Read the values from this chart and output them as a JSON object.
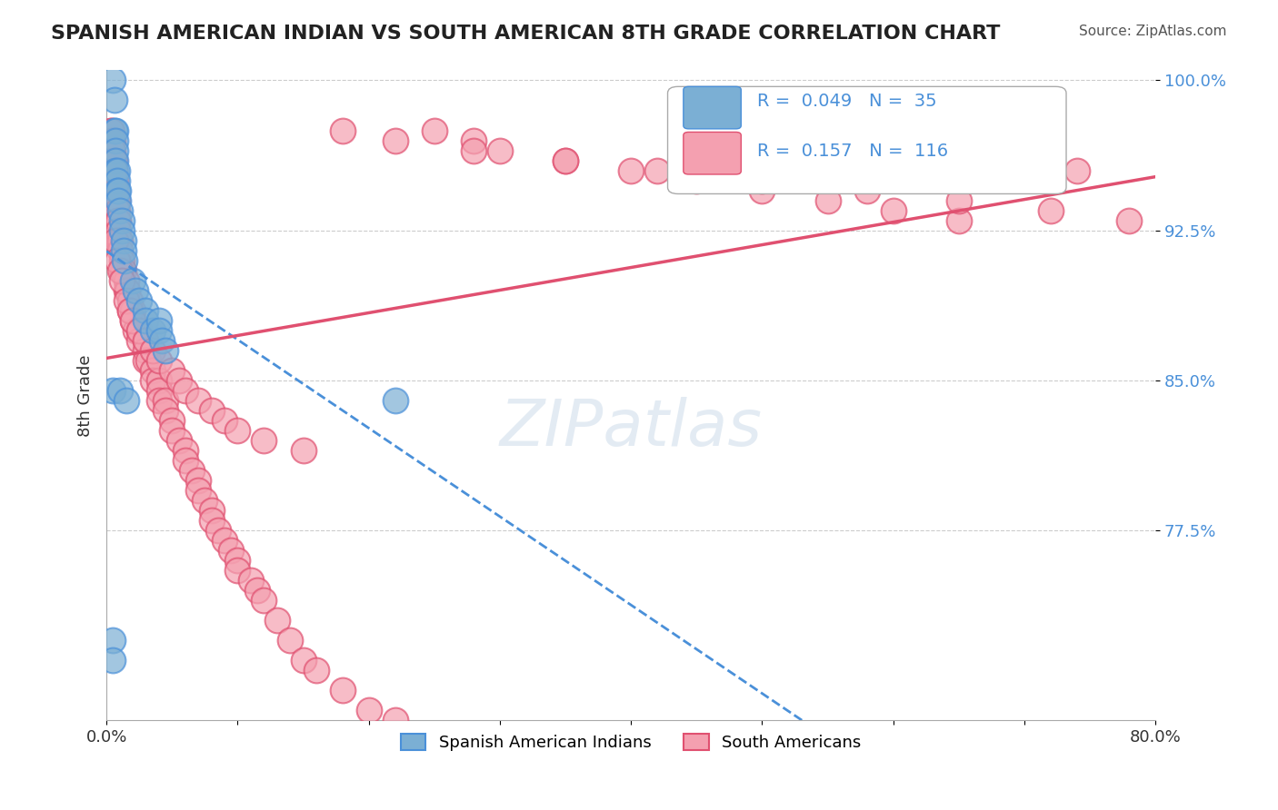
{
  "title": "SPANISH AMERICAN INDIAN VS SOUTH AMERICAN 8TH GRADE CORRELATION CHART",
  "source": "Source: ZipAtlas.com",
  "xlabel": "",
  "ylabel": "8th Grade",
  "xlim": [
    0.0,
    0.8
  ],
  "ylim": [
    0.68,
    1.005
  ],
  "yticks": [
    0.775,
    0.85,
    0.925,
    1.0
  ],
  "ytick_labels": [
    "77.5%",
    "85.0%",
    "92.5%",
    "100.0%"
  ],
  "xticks": [
    0.0,
    0.1,
    0.2,
    0.3,
    0.4,
    0.5,
    0.6,
    0.7,
    0.8
  ],
  "xtick_labels": [
    "0.0%",
    "",
    "",
    "",
    "",
    "",
    "",
    "",
    "80.0%"
  ],
  "blue_R": 0.049,
  "blue_N": 35,
  "pink_R": 0.157,
  "pink_N": 116,
  "blue_color": "#7bafd4",
  "pink_color": "#f4a0b0",
  "blue_line_color": "#4a90d9",
  "pink_line_color": "#e05070",
  "watermark": "ZIPatlas",
  "blue_scatter_x": [
    0.005,
    0.006,
    0.006,
    0.007,
    0.007,
    0.007,
    0.007,
    0.007,
    0.008,
    0.008,
    0.008,
    0.009,
    0.009,
    0.01,
    0.012,
    0.012,
    0.013,
    0.013,
    0.014,
    0.02,
    0.022,
    0.025,
    0.03,
    0.03,
    0.035,
    0.04,
    0.04,
    0.042,
    0.045,
    0.005,
    0.01,
    0.015,
    0.22,
    0.005,
    0.005
  ],
  "blue_scatter_y": [
    1.0,
    0.99,
    0.975,
    0.975,
    0.97,
    0.965,
    0.96,
    0.955,
    0.955,
    0.95,
    0.945,
    0.945,
    0.94,
    0.935,
    0.93,
    0.925,
    0.92,
    0.915,
    0.91,
    0.9,
    0.895,
    0.89,
    0.885,
    0.88,
    0.875,
    0.88,
    0.875,
    0.87,
    0.865,
    0.845,
    0.845,
    0.84,
    0.84,
    0.72,
    0.71
  ],
  "pink_scatter_x": [
    0.003,
    0.004,
    0.004,
    0.005,
    0.005,
    0.005,
    0.006,
    0.006,
    0.006,
    0.007,
    0.007,
    0.007,
    0.008,
    0.008,
    0.008,
    0.009,
    0.009,
    0.009,
    0.01,
    0.01,
    0.012,
    0.012,
    0.013,
    0.015,
    0.015,
    0.016,
    0.018,
    0.018,
    0.02,
    0.02,
    0.022,
    0.025,
    0.025,
    0.03,
    0.03,
    0.03,
    0.032,
    0.035,
    0.035,
    0.04,
    0.04,
    0.04,
    0.045,
    0.045,
    0.05,
    0.05,
    0.055,
    0.06,
    0.06,
    0.065,
    0.07,
    0.07,
    0.075,
    0.08,
    0.08,
    0.085,
    0.09,
    0.095,
    0.1,
    0.1,
    0.11,
    0.115,
    0.12,
    0.13,
    0.14,
    0.15,
    0.16,
    0.18,
    0.2,
    0.22,
    0.25,
    0.28,
    0.3,
    0.35,
    0.4,
    0.45,
    0.5,
    0.55,
    0.6,
    0.65,
    0.007,
    0.008,
    0.01,
    0.012,
    0.015,
    0.018,
    0.02,
    0.025,
    0.03,
    0.035,
    0.04,
    0.05,
    0.055,
    0.06,
    0.07,
    0.08,
    0.09,
    0.1,
    0.12,
    0.15,
    0.18,
    0.22,
    0.28,
    0.35,
    0.42,
    0.5,
    0.58,
    0.65,
    0.72,
    0.78,
    0.5,
    0.55,
    0.6,
    0.65,
    0.7,
    0.74
  ],
  "pink_scatter_y": [
    0.975,
    0.975,
    0.97,
    0.97,
    0.965,
    0.96,
    0.96,
    0.955,
    0.95,
    0.95,
    0.945,
    0.94,
    0.94,
    0.935,
    0.93,
    0.93,
    0.925,
    0.92,
    0.92,
    0.915,
    0.91,
    0.905,
    0.905,
    0.9,
    0.895,
    0.895,
    0.89,
    0.885,
    0.885,
    0.88,
    0.875,
    0.875,
    0.87,
    0.87,
    0.865,
    0.86,
    0.86,
    0.855,
    0.85,
    0.85,
    0.845,
    0.84,
    0.84,
    0.835,
    0.83,
    0.825,
    0.82,
    0.815,
    0.81,
    0.805,
    0.8,
    0.795,
    0.79,
    0.785,
    0.78,
    0.775,
    0.77,
    0.765,
    0.76,
    0.755,
    0.75,
    0.745,
    0.74,
    0.73,
    0.72,
    0.71,
    0.705,
    0.695,
    0.685,
    0.68,
    0.975,
    0.97,
    0.965,
    0.96,
    0.955,
    0.95,
    0.945,
    0.94,
    0.935,
    0.93,
    0.92,
    0.91,
    0.905,
    0.9,
    0.89,
    0.885,
    0.88,
    0.875,
    0.87,
    0.865,
    0.86,
    0.855,
    0.85,
    0.845,
    0.84,
    0.835,
    0.83,
    0.825,
    0.82,
    0.815,
    0.975,
    0.97,
    0.965,
    0.96,
    0.955,
    0.95,
    0.945,
    0.94,
    0.935,
    0.93,
    0.98,
    0.975,
    0.97,
    0.965,
    0.96,
    0.955
  ]
}
